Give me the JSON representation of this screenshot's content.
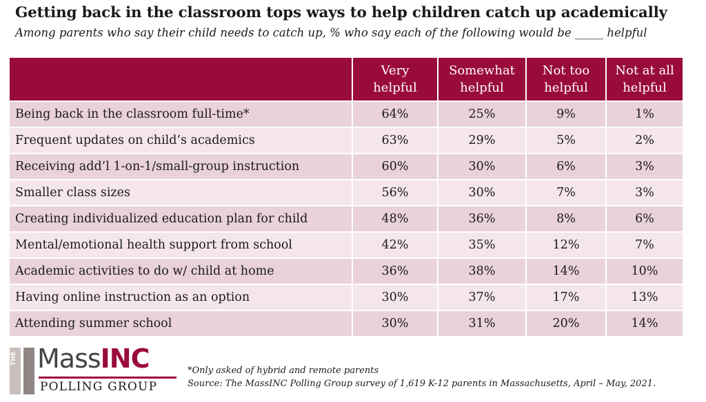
{
  "title": "Getting back in the classroom tops ways to help children catch up academically",
  "subtitle": "Among parents who say their child needs to catch up, % who say each of the following would be _____ helpful",
  "colors": {
    "header_bg": "#9a0b3d",
    "row_odd": "#e9d2d9",
    "row_even": "#f5e6ea",
    "brand": "#9a0b3d"
  },
  "chart_data": {
    "type": "table",
    "columns": [
      "Very\nhelpful",
      "Somewhat\nhelpful",
      "Not too\nhelpful",
      "Not at all\nhelpful"
    ],
    "rows": [
      {
        "label": "Being back in the classroom full-time*",
        "values": [
          "64%",
          "25%",
          "9%",
          "1%"
        ]
      },
      {
        "label": "Frequent updates on child’s academics",
        "values": [
          "63%",
          "29%",
          "5%",
          "2%"
        ]
      },
      {
        "label": "Receiving add’l 1-on-1/small-group instruction",
        "values": [
          "60%",
          "30%",
          "6%",
          "3%"
        ]
      },
      {
        "label": "Smaller class sizes",
        "values": [
          "56%",
          "30%",
          "7%",
          "3%"
        ]
      },
      {
        "label": "Creating individualized education plan for child",
        "values": [
          "48%",
          "36%",
          "8%",
          "6%"
        ]
      },
      {
        "label": "Mental/emotional health support from school",
        "values": [
          "42%",
          "35%",
          "12%",
          "7%"
        ]
      },
      {
        "label": "Academic activities to do w/ child at home",
        "values": [
          "36%",
          "38%",
          "14%",
          "10%"
        ]
      },
      {
        "label": "Having online instruction as an option",
        "values": [
          "30%",
          "37%",
          "17%",
          "13%"
        ]
      },
      {
        "label": "Attending summer school",
        "values": [
          "30%",
          "31%",
          "20%",
          "14%"
        ]
      }
    ]
  },
  "logo": {
    "the": "THE",
    "mass": "Mass",
    "inc": "INC",
    "polling": "POLLING GROUP"
  },
  "footnote": {
    "note": "*Only asked of hybrid and remote parents",
    "source": "Source: The MassINC Polling Group survey of 1,619 K-12 parents in Massachusetts, April – May, 2021."
  }
}
